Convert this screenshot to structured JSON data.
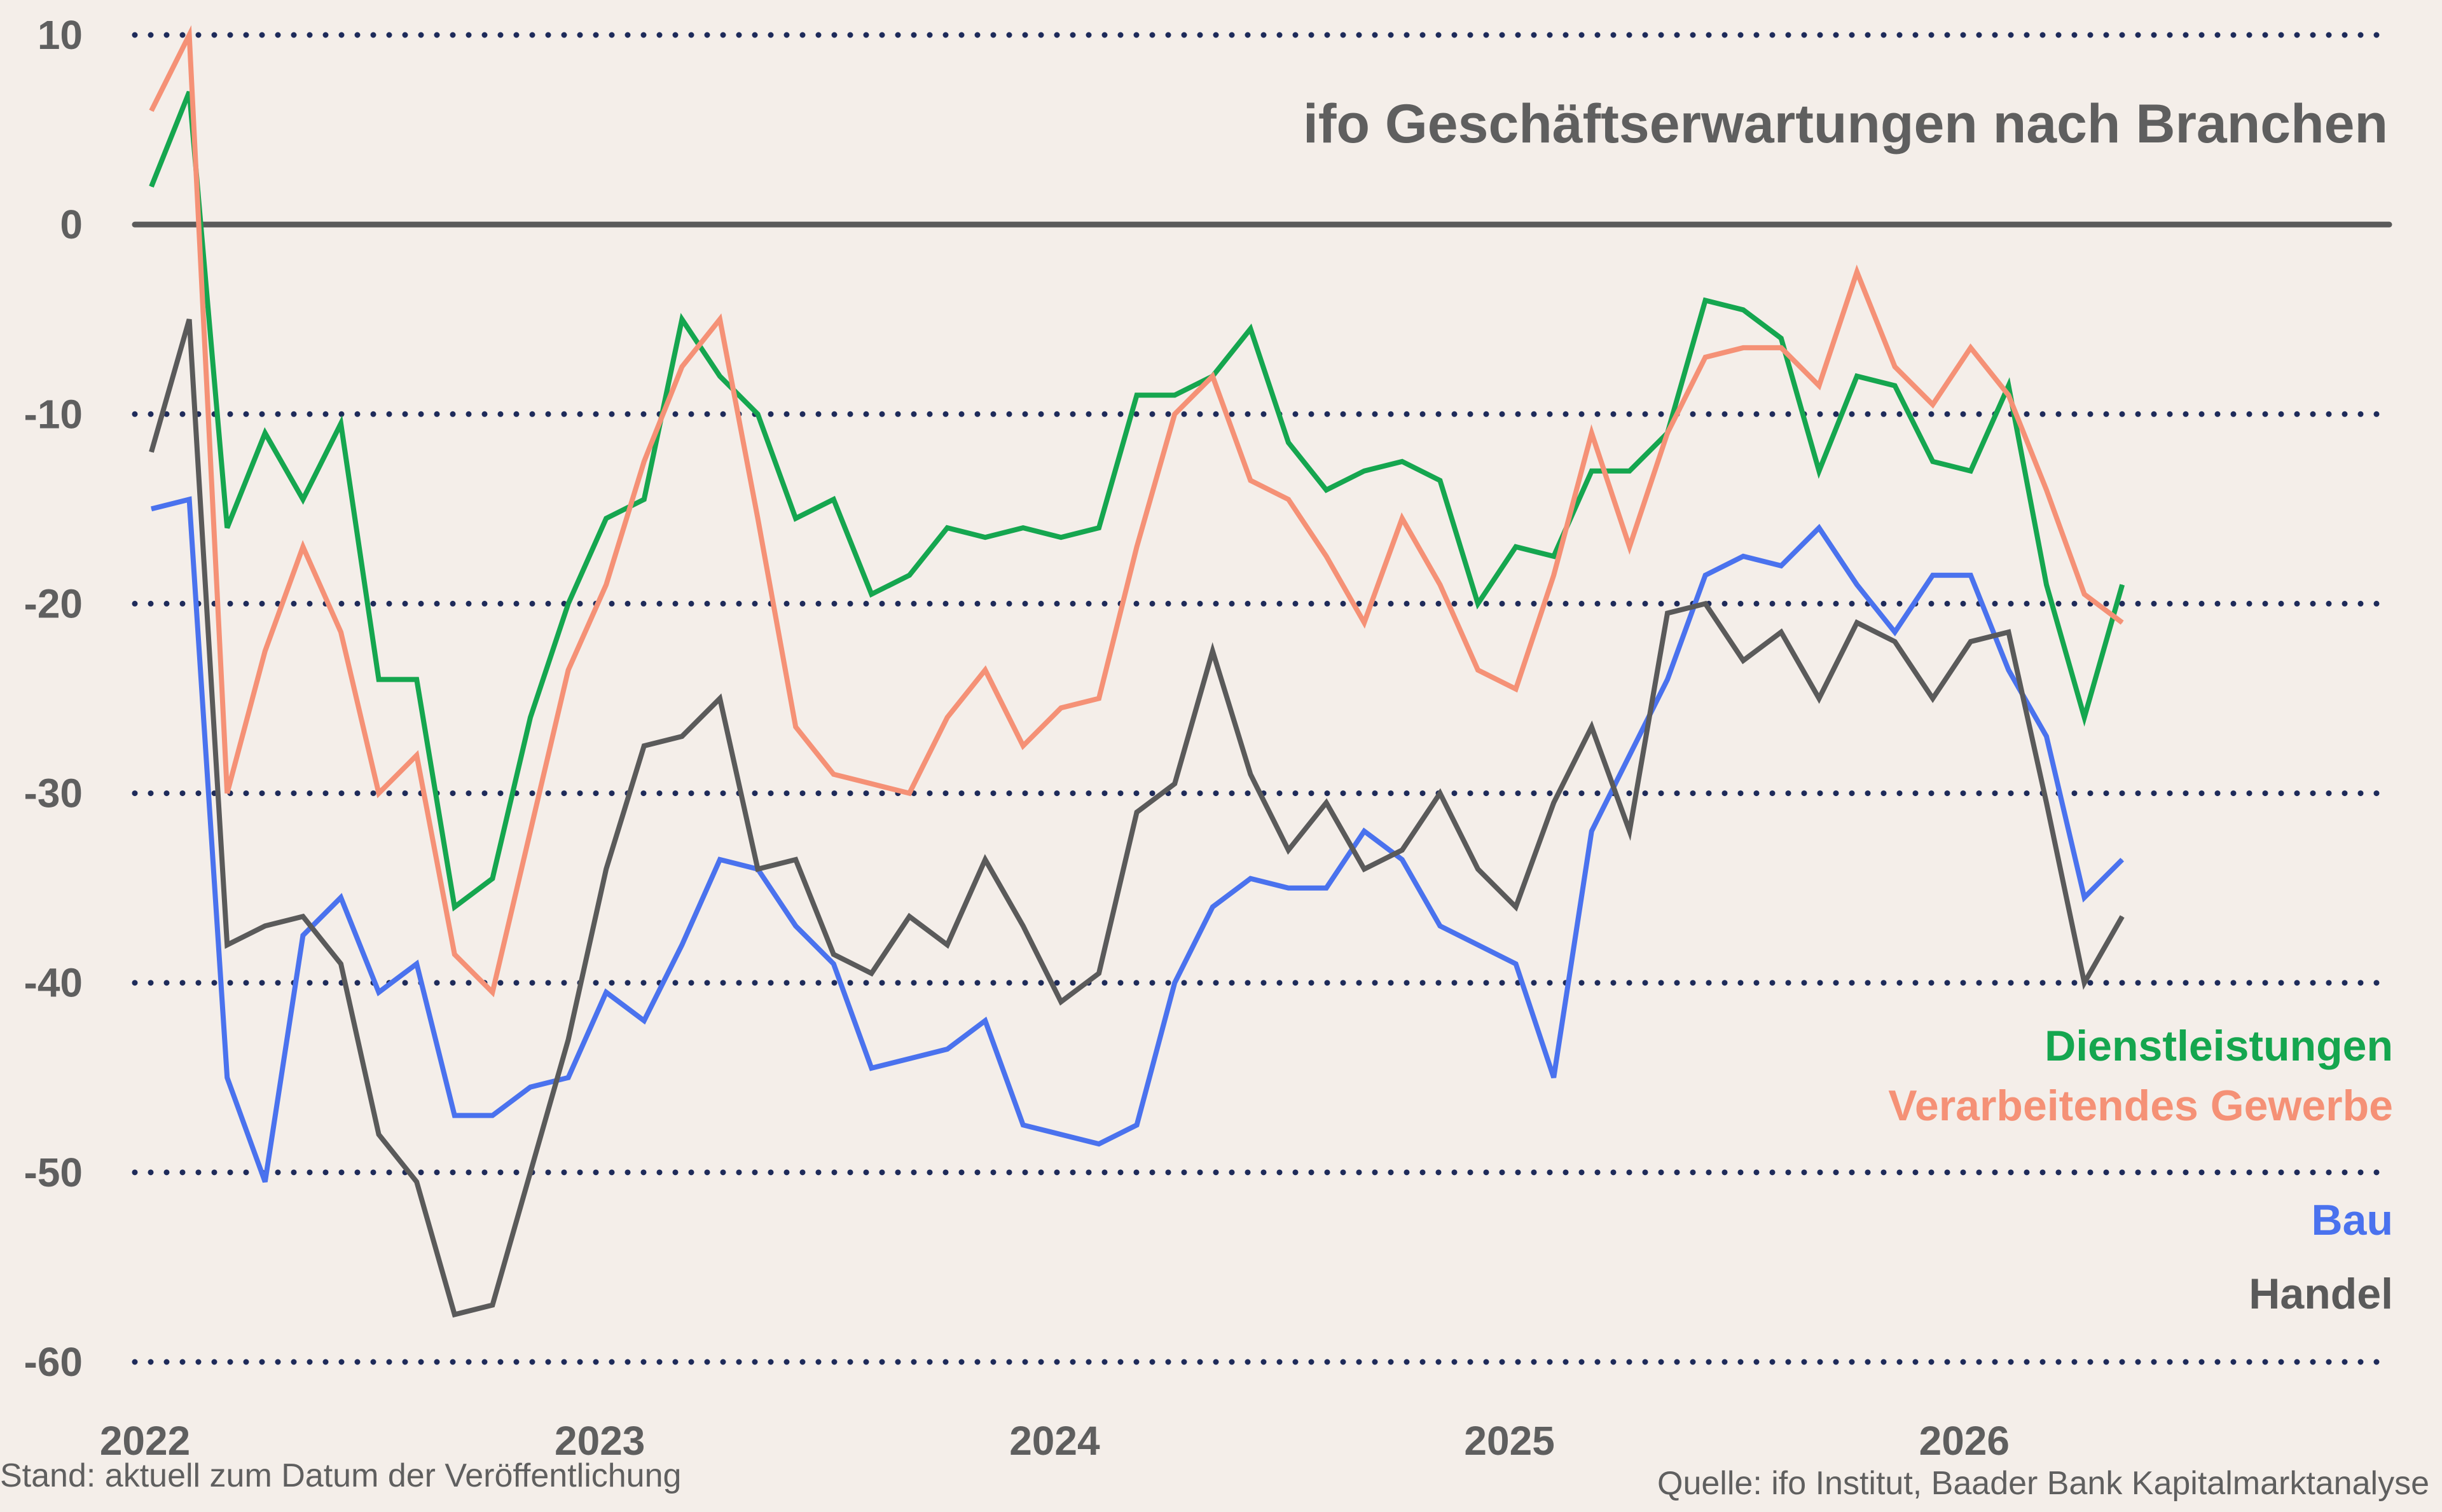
{
  "chart_data": {
    "type": "line",
    "title": "ifo Geschäftserwartungen nach Branchen",
    "ylim": [
      -60,
      10
    ],
    "yticks": [
      "10",
      "0",
      "-10",
      "-20",
      "-30",
      "-40",
      "-50",
      "-60"
    ],
    "xlim": [
      "2022-01",
      "2026-12"
    ],
    "xticks": [
      "2022",
      "2023",
      "2024",
      "2025",
      "2026"
    ],
    "grid": true,
    "x": [
      "2022-01",
      "2022-02",
      "2022-03",
      "2022-04",
      "2022-05",
      "2022-06",
      "2022-07",
      "2022-08",
      "2022-09",
      "2022-10",
      "2022-11",
      "2022-12",
      "2023-01",
      "2023-02",
      "2023-03",
      "2023-04",
      "2023-05",
      "2023-06",
      "2023-07",
      "2023-08",
      "2023-09",
      "2023-10",
      "2023-11",
      "2023-12",
      "2024-01",
      "2024-02",
      "2024-03",
      "2024-04",
      "2024-05",
      "2024-06",
      "2024-07",
      "2024-08",
      "2024-09",
      "2024-10",
      "2024-11",
      "2024-12",
      "2025-01",
      "2025-02",
      "2025-03",
      "2025-04",
      "2025-05",
      "2025-06",
      "2025-07",
      "2025-08",
      "2025-09",
      "2025-10",
      "2025-11",
      "2025-12",
      "2026-01",
      "2026-02",
      "2026-03",
      "2026-04",
      "2026-05"
    ],
    "series": [
      {
        "name": "Dienstleistungen",
        "color": "#15a64f",
        "values": [
          2,
          7,
          -16,
          -11,
          -14.5,
          -10.5,
          -24,
          -24,
          -36,
          -34.5,
          -26,
          -20,
          -15.5,
          -14.5,
          -5,
          -8,
          -10,
          -15.5,
          -14.5,
          -19.5,
          -18.5,
          -16,
          -16.5,
          -16,
          -16.5,
          -16,
          -9,
          -9,
          -8,
          -5.5,
          -11.5,
          -14,
          -13,
          -12.5,
          -13.5,
          -20,
          -17,
          -17.5,
          -13,
          -13,
          -11,
          -4,
          -4.5,
          -6,
          -13,
          -8,
          -8.5,
          -12.5,
          -13,
          -8.5,
          -19,
          -26,
          -19
        ]
      },
      {
        "name": "Verarbeitendes Gewerbe",
        "color": "#f59176",
        "values": [
          6,
          10,
          -30,
          -22.5,
          -17,
          -21.5,
          -30,
          -28,
          -38.5,
          -40.5,
          -32,
          -23.5,
          -19,
          -12.5,
          -7.5,
          -5,
          -15.5,
          -26.5,
          -29,
          -29.5,
          -30,
          -26,
          -23.5,
          -27.5,
          -25.5,
          -25,
          -17,
          -10,
          -8,
          -13.5,
          -14.5,
          -17.5,
          -21,
          -15.5,
          -19,
          -23.5,
          -24.5,
          -18.5,
          -11,
          -17,
          -11,
          -7,
          -6.5,
          -6.5,
          -8.5,
          -2.5,
          -7.5,
          -9.5,
          -6.5,
          -9,
          -14,
          -19.5,
          -21
        ]
      },
      {
        "name": "Bau",
        "color": "#4a72ee",
        "values": [
          -15,
          -14.5,
          -45,
          -50.5,
          -37.5,
          -35.5,
          -40.5,
          -39,
          -47,
          -47,
          -45.5,
          -45,
          -40.5,
          -42,
          -38,
          -33.5,
          -34,
          -37,
          -39,
          -44.5,
          -44,
          -43.5,
          -42,
          -47.5,
          -48,
          -48.5,
          -47.5,
          -40,
          -36,
          -34.5,
          -35,
          -35,
          -32,
          -33.5,
          -37,
          -38,
          -39,
          -45,
          -32,
          -28,
          -24,
          -18.5,
          -17.5,
          -18,
          -16,
          -19,
          -21.5,
          -18.5,
          -18.5,
          -23.5,
          -27,
          -35.5,
          -33.5
        ]
      },
      {
        "name": "Handel",
        "color": "#5a5a5a",
        "values": [
          -12,
          -5,
          -38,
          -37,
          -36.5,
          -39,
          -48,
          -50.5,
          -57.5,
          -57,
          -50,
          -43,
          -34,
          -27.5,
          -27,
          -25,
          -34,
          -33.5,
          -38.5,
          -39.5,
          -36.5,
          -38,
          -33.5,
          -37,
          -41,
          -39.5,
          -31,
          -29.5,
          -22.5,
          -29,
          -33,
          -30.5,
          -34,
          -33,
          -30,
          -34,
          -36,
          -30.5,
          -26.5,
          -32,
          -20.5,
          -20,
          -23,
          -21.5,
          -25,
          -21,
          -22,
          -25,
          -22,
          -21.5,
          -30.5,
          -40,
          -36.5
        ]
      }
    ],
    "legend": [
      "Dienstleistungen",
      "Verarbeitendes Gewerbe",
      "Bau",
      "Handel"
    ],
    "legend_position": "lower-right"
  },
  "footer": {
    "left": "Stand: aktuell zum Datum der Veröffentlichung",
    "right": "Quelle: ifo Institut, Baader Bank Kapitalmarktanalyse"
  }
}
